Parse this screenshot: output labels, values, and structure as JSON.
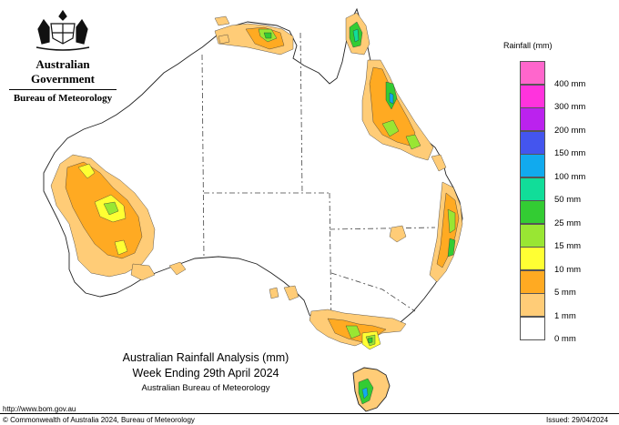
{
  "header": {
    "government": "Australian Government",
    "agency": "Bureau of Meteorology"
  },
  "legend": {
    "title": "Rainfall (mm)",
    "bins": [
      {
        "label": "",
        "color": "#ff66cc"
      },
      {
        "label": "400 mm",
        "color": "#ff33dd"
      },
      {
        "label": "300 mm",
        "color": "#bb22ee"
      },
      {
        "label": "200 mm",
        "color": "#4455ee"
      },
      {
        "label": "150 mm",
        "color": "#11aaee"
      },
      {
        "label": "100 mm",
        "color": "#11dd99"
      },
      {
        "label": "50 mm",
        "color": "#33cc33"
      },
      {
        "label": "25 mm",
        "color": "#99e633"
      },
      {
        "label": "15 mm",
        "color": "#ffff33"
      },
      {
        "label": "10 mm",
        "color": "#ffaa22"
      },
      {
        "label": "5 mm",
        "color": "#ffcc77"
      },
      {
        "label": "1 mm",
        "color": "#ffffff"
      },
      {
        "label": "0 mm",
        "color": ""
      }
    ]
  },
  "caption": {
    "line1": "Australian Rainfall Analysis (mm)",
    "line2": "Week Ending 29th April 2024",
    "line3": "Australian Bureau of Meteorology"
  },
  "footer": {
    "url": "http://www.bom.gov.au",
    "copyright": "© Commonwealth of Australia 2024, Bureau of Meteorology",
    "issued": "Issued: 29/04/2024"
  },
  "colors": {
    "light_orange": "#ffcc77",
    "orange": "#ffaa22",
    "yellow": "#ffff33",
    "light_green": "#99e633",
    "green": "#33cc33",
    "teal": "#11dd99",
    "cyan": "#11aaee"
  }
}
